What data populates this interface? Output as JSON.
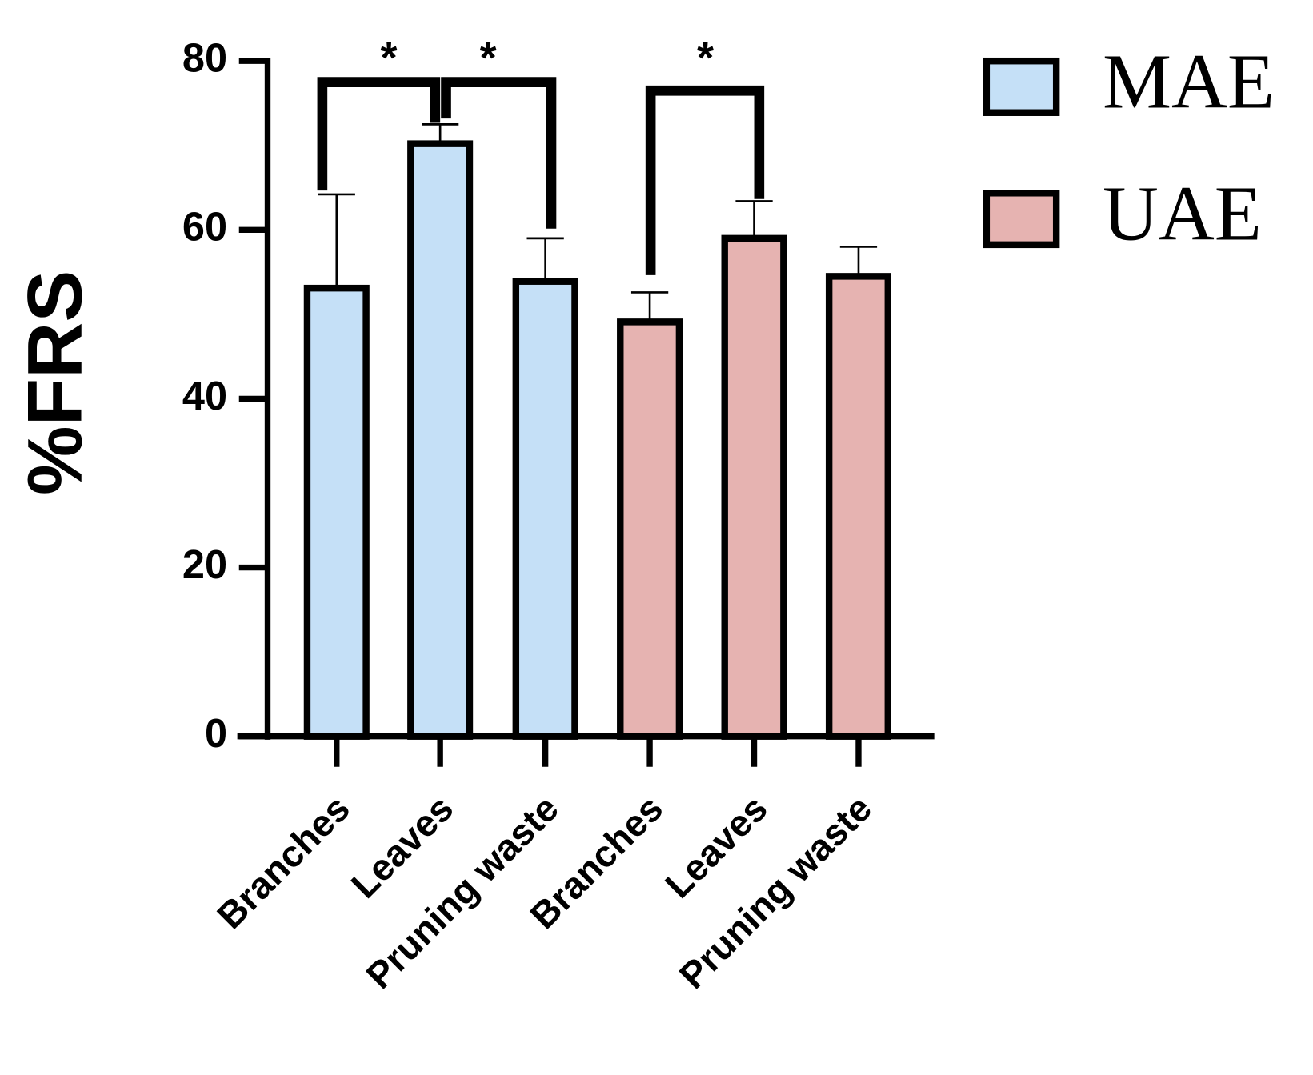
{
  "chart_data": {
    "type": "bar",
    "y_label": "%FRS",
    "categories": [
      "Branches",
      "Leaves",
      "Pruning waste",
      "Branches",
      "Leaves",
      "Pruning waste"
    ],
    "series": [
      {
        "name": "MAE",
        "color": "#c5e0f7",
        "values": [
          53.1,
          70.2,
          53.9,
          null,
          null,
          null
        ],
        "errors": [
          11.1,
          2.3,
          5.1,
          null,
          null,
          null
        ]
      },
      {
        "name": "UAE",
        "color": "#e6b3b1",
        "values": [
          null,
          null,
          null,
          49.1,
          59.0,
          54.5
        ],
        "errors": [
          null,
          null,
          null,
          3.5,
          4.4,
          3.5
        ]
      }
    ],
    "annotations": [
      "*",
      "*",
      "*"
    ],
    "ylim": [
      0,
      80
    ],
    "yticks": [
      0,
      20,
      40,
      60,
      80
    ],
    "legend": "right"
  }
}
